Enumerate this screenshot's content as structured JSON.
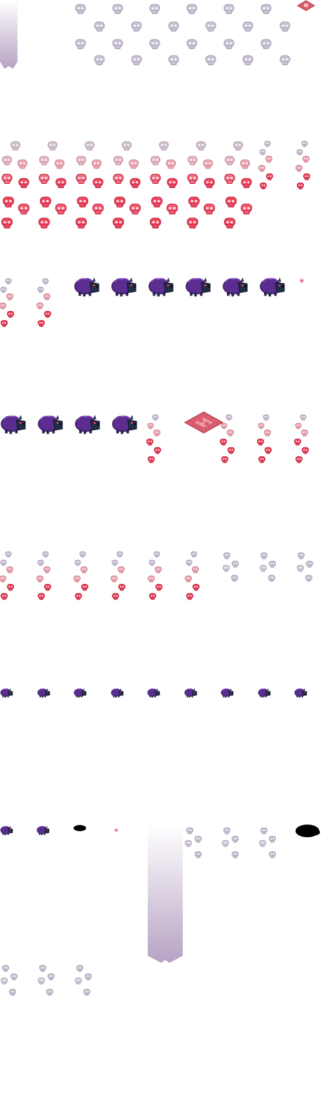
{
  "sheet": {
    "background": "#ffffff",
    "sprite_kinds": [
      "gradient-beam",
      "skull-cluster-grey",
      "skull-cluster-mixed",
      "skull-column-mixed",
      "skull-column-grey",
      "purple-boar",
      "purple-boar-small",
      "red-rune-tile",
      "black-shadow",
      "red-spark"
    ]
  },
  "colors": {
    "grey_skull": "#c9c2d3",
    "grey_skull_edge": "#b0a7bd",
    "pink_skull": "#e8a7b3",
    "red_skull": "#f0475f",
    "red_skull_edge": "#c72c46",
    "boar_body": "#5c2d91",
    "boar_dark": "#2f1750",
    "boar_face": "#1f2f45",
    "boar_eye": "#ff3355",
    "rune_tile": "#d95d6c",
    "rune_light": "#f4b6bd",
    "beam_top": "#ffffff",
    "beam_bottom": "#b7a3c4",
    "shadow": "#000000"
  }
}
